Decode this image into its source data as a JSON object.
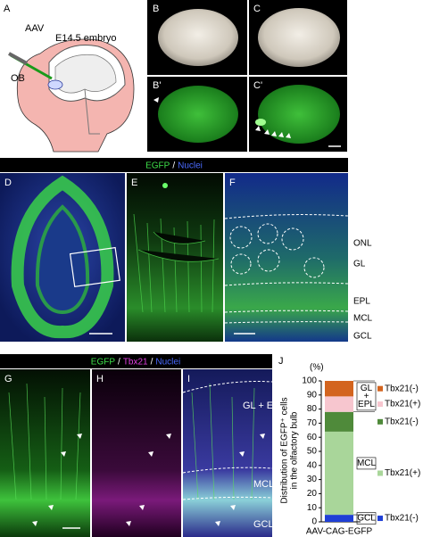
{
  "panel_labels": [
    "A",
    "B",
    "C",
    "B'",
    "C'",
    "D",
    "E",
    "F",
    "G",
    "H",
    "I",
    "J"
  ],
  "panel_a": {
    "labels": [
      "AAV",
      "E14.5 embryo",
      "OB"
    ]
  },
  "header_1": [
    "EGFP",
    "/",
    "Nuclei"
  ],
  "layer_labels": [
    "ONL",
    "GL",
    "EPL",
    "MCL",
    "GCL"
  ],
  "header_2": [
    "EGFP",
    "/",
    "Tbx21",
    "/",
    "Nuclei"
  ],
  "panel_i_labels": [
    "GL + EPL",
    "MCL",
    "GCL"
  ],
  "chart_data": {
    "type": "stacked_bar",
    "y_unit_label": "(%)",
    "y_label": [
      "Distribution of EGFP⁺ cells",
      "in the olfactory bulb"
    ],
    "categories": [
      "AAV-CAG-EGFP"
    ],
    "ylim": [
      0,
      100
    ],
    "yticks": [
      0,
      10,
      20,
      30,
      40,
      50,
      60,
      70,
      80,
      90,
      100
    ],
    "groups": [
      {
        "label": [
          "GCL"
        ],
        "series": [
          {
            "name": "Tbx21(-)",
            "color": "#1f3fd6",
            "values": [
              5
            ]
          }
        ]
      },
      {
        "label": [
          "MCL"
        ],
        "series": [
          {
            "name": "Tbx21(+)",
            "color": "#a9d69a",
            "values": [
              59
            ]
          },
          {
            "name": "Tbx21(-)",
            "color": "#4f8a3a",
            "values": [
              14
            ]
          }
        ]
      },
      {
        "label": [
          "GL",
          "+",
          "EPL"
        ],
        "series": [
          {
            "name": "Tbx21(+)",
            "color": "#f7c6cf",
            "values": [
              11
            ]
          },
          {
            "name": "Tbx21(-)",
            "color": "#d3641f",
            "values": [
              11
            ]
          }
        ]
      }
    ]
  }
}
